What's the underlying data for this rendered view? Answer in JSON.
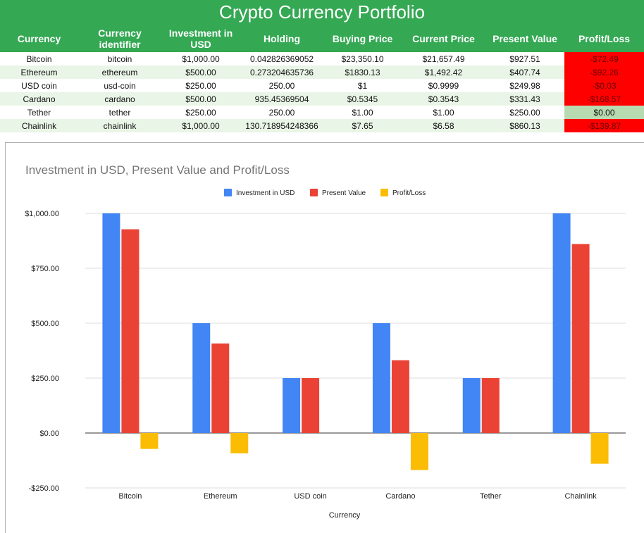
{
  "title": "Crypto Currency Portfolio",
  "table": {
    "headers": [
      "Currency",
      "Currency identifier",
      "Investment in USD",
      "Holding",
      "Buying Price",
      "Current Price",
      "Present Value",
      "Profit/Loss"
    ],
    "rows": [
      [
        "Bitcoin",
        "bitcoin",
        "$1,000.00",
        "0.042826369052",
        "$23,350.10",
        "$21,657.49",
        "$927.51",
        "-$72.49"
      ],
      [
        "Ethereum",
        "ethereum",
        "$500.00",
        "0.273204635736",
        "$1830.13",
        "$1,492.42",
        "$407.74",
        "-$92.26"
      ],
      [
        "USD coin",
        "usd-coin",
        "$250.00",
        "250.00",
        "$1",
        "$0.9999",
        "$249.98",
        "-$0.03"
      ],
      [
        "Cardano",
        "cardano",
        "$500.00",
        "935.45369504",
        "$0.5345",
        "$0.3543",
        "$331.43",
        "-$168.57"
      ],
      [
        "Tether",
        "tether",
        "$250.00",
        "250.00",
        "$1.00",
        "$1.00",
        "$250.00",
        "$0.00"
      ],
      [
        "Chainlink",
        "chainlink",
        "$1,000.00",
        "130.718954248366",
        "$7.65",
        "$6.58",
        "$860.13",
        "-$139.87"
      ]
    ]
  },
  "colors": {
    "header_green": "#34a853",
    "loss_red": "#ff0000",
    "neutral_green": "#b7dab0",
    "series_blue": "#4285f4",
    "series_red": "#ea4335",
    "series_yellow": "#fbbc04"
  },
  "chart_data": {
    "type": "bar",
    "title": "Investment in USD, Present Value and Profit/Loss",
    "xlabel": "Currency",
    "ylabel": "",
    "categories": [
      "Bitcoin",
      "Ethereum",
      "USD coin",
      "Cardano",
      "Tether",
      "Chainlink"
    ],
    "series": [
      {
        "name": "Investment in USD",
        "color": "#4285f4",
        "values": [
          1000.0,
          500.0,
          250.0,
          500.0,
          250.0,
          1000.0
        ]
      },
      {
        "name": "Present Value",
        "color": "#ea4335",
        "values": [
          927.51,
          407.74,
          249.98,
          331.43,
          250.0,
          860.13
        ]
      },
      {
        "name": "Profit/Loss",
        "color": "#fbbc04",
        "values": [
          -72.49,
          -92.26,
          -0.03,
          -168.57,
          0.0,
          -139.87
        ]
      }
    ],
    "ylim": [
      -250,
      1000
    ],
    "yticks": [
      -250,
      0,
      250,
      500,
      750,
      1000
    ],
    "ytick_labels": [
      "-$250.00",
      "$0.00",
      "$250.00",
      "$500.00",
      "$750.00",
      "$1,000.00"
    ],
    "legend_position": "top",
    "grid": true
  }
}
